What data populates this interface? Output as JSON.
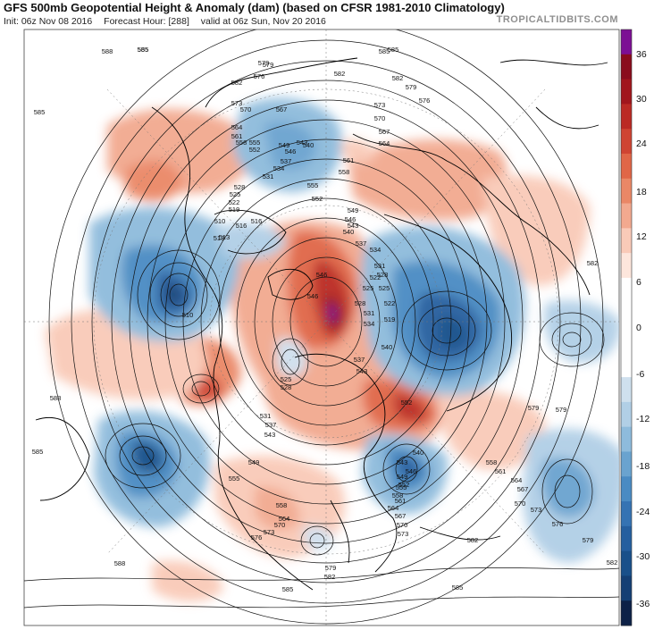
{
  "header": {
    "title": "GFS 500mb Geopotential Height & Anomaly (dam) (based on CFSR 1981-2010 Climatology)",
    "init": "Init: 06z Nov 08 2016",
    "forecast_hour": "Forecast Hour: [288]",
    "valid": "valid at 06z Sun, Nov 20 2016",
    "brand": "TROPICALTIDBITS.COM"
  },
  "colorbar": {
    "ticks": [
      "36",
      "30",
      "24",
      "18",
      "12",
      "6",
      "0",
      "-6",
      "-12",
      "-18",
      "-24",
      "-30",
      "-36"
    ],
    "colors": [
      "#f3f6fa",
      "#e9effa",
      "#cfe0ee",
      "#b1cfe6",
      "#8ebbdc",
      "#6aa3cf",
      "#4a8bc3",
      "#3573b3",
      "#255f9f",
      "#19508a",
      "#143f74",
      "#102f5d",
      "#0d2147",
      "#fde6dc",
      "#f9cab8",
      "#f2a98f",
      "#ea8766",
      "#e06647",
      "#cf4432",
      "#bb2a24",
      "#a1161c",
      "#8a0c1c",
      "#6e0818",
      "#7c0f94"
    ],
    "label_0": "0"
  },
  "contours": {
    "labels": [
      "585",
      "585",
      "582",
      "579",
      "576",
      "573",
      "570",
      "567",
      "564",
      "561",
      "558",
      "555",
      "552",
      "549",
      "546",
      "543",
      "540",
      "537",
      "534",
      "531",
      "528",
      "525",
      "522",
      "519",
      "516",
      "513",
      "510",
      "585",
      "588",
      "579",
      "582",
      "585",
      "582",
      "579",
      "576",
      "573",
      "570",
      "567",
      "564",
      "561",
      "558",
      "555",
      "552",
      "549",
      "546",
      "543",
      "540",
      "537",
      "534",
      "531",
      "528",
      "525",
      "522",
      "519",
      "588",
      "585",
      "579",
      "582",
      "588",
      "585",
      "582",
      "579",
      "576",
      "573",
      "570",
      "564",
      "558",
      "555",
      "549",
      "543",
      "537",
      "531",
      "528",
      "525",
      "546",
      "552",
      "543",
      "546",
      "540",
      "537",
      "534",
      "531",
      "528",
      "525",
      "522",
      "516",
      "513",
      "510",
      "573",
      "570",
      "567",
      "564",
      "561",
      "558",
      "555",
      "552",
      "549",
      "546",
      "543",
      "540",
      "579",
      "582",
      "585",
      "582",
      "579",
      "576",
      "573",
      "570",
      "567",
      "564",
      "561",
      "558",
      "555"
    ]
  }
}
